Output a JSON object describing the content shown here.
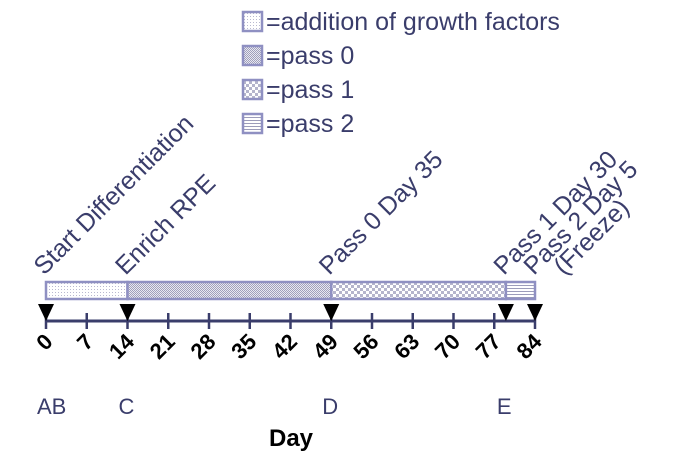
{
  "legend": [
    {
      "pattern": "dots",
      "label": "=addition of growth factors"
    },
    {
      "pattern": "fine-check",
      "label": "=pass 0"
    },
    {
      "pattern": "checker",
      "label": "=pass 1"
    },
    {
      "pattern": "hlines",
      "label": "=pass 2"
    }
  ],
  "timeline": {
    "axis_title": "Day",
    "range": [
      0,
      84
    ],
    "ticks": [
      0,
      7,
      14,
      21,
      28,
      35,
      42,
      49,
      56,
      63,
      70,
      77,
      84
    ],
    "segments": [
      {
        "start": 0,
        "end": 14,
        "pattern": "dots"
      },
      {
        "start": 14,
        "end": 49,
        "pattern": "fine-check"
      },
      {
        "start": 49,
        "end": 79,
        "pattern": "checker"
      },
      {
        "start": 79,
        "end": 84,
        "pattern": "hlines"
      }
    ],
    "markers": [
      0,
      14,
      49,
      79,
      84
    ],
    "events": [
      {
        "day": 0,
        "lines": [
          "Start Differentiation"
        ]
      },
      {
        "day": 14,
        "lines": [
          "Enrich RPE"
        ]
      },
      {
        "day": 49,
        "lines": [
          "Pass 0 Day 35"
        ]
      },
      {
        "day": 79,
        "lines": [
          "Pass 1 Day 30",
          "Pass 2 Day 5",
          "(Freeze)"
        ]
      }
    ],
    "letters": [
      {
        "day": 0,
        "text": "AB"
      },
      {
        "day": 14,
        "text": "C"
      },
      {
        "day": 49,
        "text": "D"
      },
      {
        "day": 79,
        "text": "E"
      }
    ]
  },
  "colors": {
    "line": "#3a3d6b",
    "box_border": "#8f90c2",
    "pattern": "#a9a9c4",
    "marker": "#000000"
  }
}
